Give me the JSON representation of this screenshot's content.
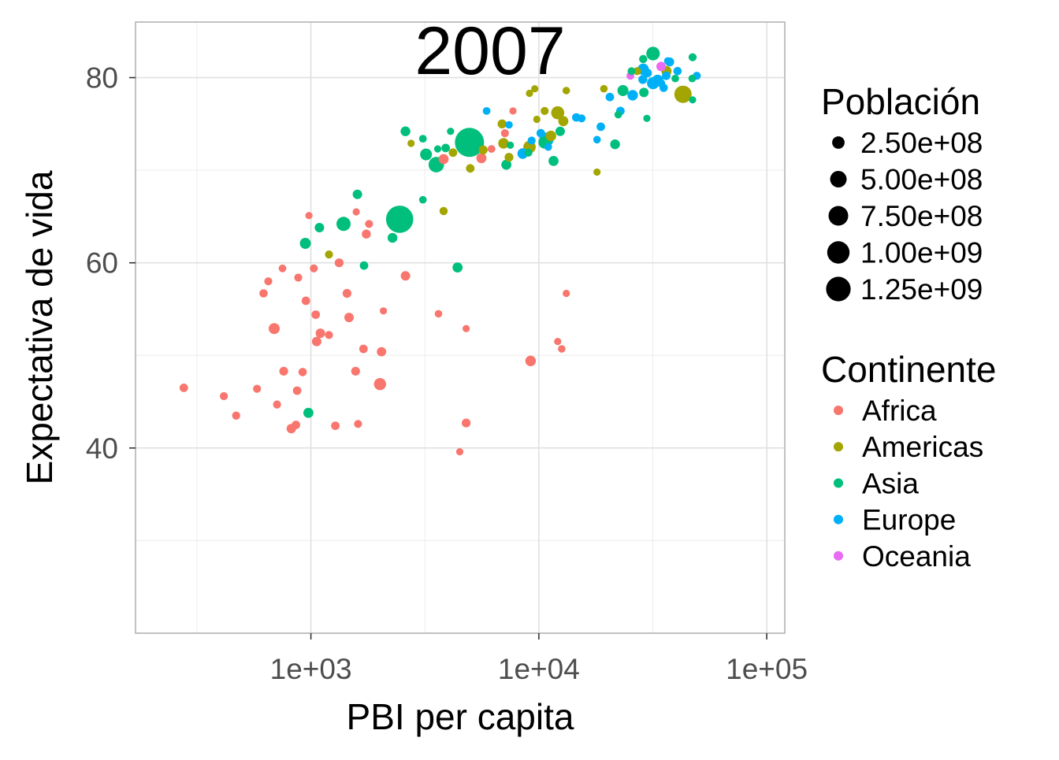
{
  "chart_data": {
    "type": "scatter",
    "title": "2007",
    "xlabel": "PBI per capita",
    "ylabel": "Expectativa de vida",
    "x_scale": "log10",
    "xlim": [
      170,
      120000
    ],
    "ylim": [
      20,
      86
    ],
    "x_ticks": [
      {
        "value": 1000,
        "label": "1e+03"
      },
      {
        "value": 10000,
        "label": "1e+04"
      },
      {
        "value": 100000,
        "label": "1e+05"
      }
    ],
    "y_ticks": [
      {
        "value": 40,
        "label": "40"
      },
      {
        "value": 60,
        "label": "60"
      },
      {
        "value": 80,
        "label": "80"
      }
    ],
    "x_minor": [
      316,
      3162,
      31623
    ],
    "y_minor": [
      30,
      50,
      70
    ],
    "grid": true,
    "legend_placement": "right",
    "size_legend": {
      "title": "Población",
      "entries": [
        {
          "label": "2.50e+08",
          "value": 250000000
        },
        {
          "label": "5.00e+08",
          "value": 500000000
        },
        {
          "label": "7.50e+08",
          "value": 750000000
        },
        {
          "label": "1.00e+09",
          "value": 1000000000
        },
        {
          "label": "1.25e+09",
          "value": 1250000000
        }
      ]
    },
    "color_legend": {
      "title": "Continente",
      "entries": [
        {
          "label": "Africa",
          "color": "#F8766D"
        },
        {
          "label": "Americas",
          "color": "#A3A500"
        },
        {
          "label": "Asia",
          "color": "#00BF7D"
        },
        {
          "label": "Europe",
          "color": "#00B0F6"
        },
        {
          "label": "Oceania",
          "color": "#E76BF3"
        }
      ]
    },
    "series": [
      {
        "name": "Africa",
        "color": "#F8766D",
        "points": [
          [
            277,
            46.5,
            10
          ],
          [
            415,
            45.6,
            5
          ],
          [
            470,
            43.5,
            6
          ],
          [
            580,
            46.4,
            5
          ],
          [
            620,
            56.7,
            8
          ],
          [
            650,
            58.0,
            5
          ],
          [
            690,
            52.9,
            50
          ],
          [
            710,
            44.7,
            5
          ],
          [
            760,
            48.3,
            12
          ],
          [
            750,
            59.4,
            3
          ],
          [
            820,
            42.1,
            20
          ],
          [
            860,
            42.5,
            10
          ],
          [
            870,
            46.2,
            10
          ],
          [
            880,
            58.4,
            5
          ],
          [
            920,
            48.2,
            8
          ],
          [
            950,
            55.9,
            10
          ],
          [
            980,
            65.1,
            1
          ],
          [
            1030,
            59.4,
            5
          ],
          [
            1050,
            54.4,
            10
          ],
          [
            1060,
            51.5,
            20
          ],
          [
            1100,
            52.4,
            20
          ],
          [
            1200,
            52.2,
            5
          ],
          [
            1280,
            42.4,
            10
          ],
          [
            1330,
            60.0,
            12
          ],
          [
            1440,
            56.7,
            12
          ],
          [
            1470,
            54.1,
            20
          ],
          [
            1570,
            48.3,
            12
          ],
          [
            1580,
            65.5,
            1
          ],
          [
            1610,
            42.6,
            5
          ],
          [
            1700,
            50.7,
            10
          ],
          [
            1750,
            63.1,
            15
          ],
          [
            1800,
            64.2,
            5
          ],
          [
            2010,
            46.9,
            80
          ],
          [
            2040,
            50.4,
            18
          ],
          [
            2080,
            54.8,
            1
          ],
          [
            2600,
            58.6,
            20
          ],
          [
            3630,
            54.5,
            2
          ],
          [
            3820,
            71.2,
            30
          ],
          [
            4500,
            39.6,
            1
          ],
          [
            4800,
            42.7,
            12
          ],
          [
            4800,
            52.9,
            1
          ],
          [
            5600,
            71.3,
            30
          ],
          [
            6200,
            72.3,
            3
          ],
          [
            7100,
            74.0,
            5
          ],
          [
            7700,
            76.4,
            1
          ],
          [
            9200,
            49.4,
            40
          ],
          [
            12100,
            51.5,
            1
          ],
          [
            12600,
            50.7,
            2
          ],
          [
            13200,
            56.7,
            1
          ]
        ]
      },
      {
        "name": "Americas",
        "color": "#A3A500",
        "points": [
          [
            1200,
            60.9,
            5
          ],
          [
            2750,
            72.9,
            1
          ],
          [
            3820,
            65.6,
            7
          ],
          [
            4200,
            71.9,
            10
          ],
          [
            5000,
            70.2,
            10
          ],
          [
            5700,
            72.2,
            15
          ],
          [
            6900,
            75.0,
            15
          ],
          [
            7000,
            72.9,
            40
          ],
          [
            7400,
            71.4,
            12
          ],
          [
            9100,
            72.5,
            90
          ],
          [
            9100,
            78.3,
            1
          ],
          [
            9600,
            78.8,
            1
          ],
          [
            9800,
            75.5,
            1
          ],
          [
            10600,
            76.4,
            5
          ],
          [
            11300,
            73.7,
            40
          ],
          [
            12100,
            76.2,
            110
          ],
          [
            12800,
            75.3,
            30
          ],
          [
            13200,
            78.6,
            2
          ],
          [
            18000,
            69.8,
            1
          ],
          [
            19300,
            78.8,
            2
          ],
          [
            27000,
            80.7,
            5
          ],
          [
            36300,
            80.7,
            33
          ],
          [
            42900,
            78.2,
            301
          ]
        ]
      },
      {
        "name": "Asia",
        "color": "#00BF7D",
        "points": [
          [
            975,
            43.8,
            30
          ],
          [
            945,
            62.1,
            50
          ],
          [
            1090,
            63.8,
            20
          ],
          [
            1390,
            64.2,
            150
          ],
          [
            1600,
            67.4,
            20
          ],
          [
            1710,
            59.7,
            10
          ],
          [
            2280,
            62.7,
            25
          ],
          [
            2450,
            64.7,
            1110
          ],
          [
            2600,
            74.2,
            25
          ],
          [
            3100,
            73.4,
            3
          ],
          [
            3100,
            66.8,
            2
          ],
          [
            3200,
            71.7,
            70
          ],
          [
            3550,
            70.6,
            200
          ],
          [
            3600,
            72.3,
            1
          ],
          [
            3900,
            72.4,
            10
          ],
          [
            4100,
            74.2,
            1
          ],
          [
            4400,
            59.5,
            30
          ],
          [
            4960,
            73.0,
            1319
          ],
          [
            7200,
            70.6,
            30
          ],
          [
            7500,
            72.7,
            1
          ],
          [
            9000,
            71.9,
            5
          ],
          [
            10600,
            73.0,
            90
          ],
          [
            11600,
            71.0,
            30
          ],
          [
            12400,
            74.2,
            20
          ],
          [
            21600,
            72.8,
            25
          ],
          [
            22300,
            76.0,
            2
          ],
          [
            23400,
            78.6,
            49
          ],
          [
            25500,
            80.7,
            3
          ],
          [
            28700,
            82.0,
            7
          ],
          [
            28900,
            78.4,
            21
          ],
          [
            29800,
            75.6,
            1
          ],
          [
            31700,
            82.6,
            127
          ],
          [
            39700,
            79.9,
            2
          ],
          [
            47100,
            79.9,
            2
          ],
          [
            47300,
            82.2,
            5
          ],
          [
            47300,
            77.6,
            1
          ]
        ]
      },
      {
        "name": "Europe",
        "color": "#00B0F6",
        "points": [
          [
            5900,
            76.4,
            3
          ],
          [
            7400,
            74.9,
            2
          ],
          [
            8500,
            71.8,
            40
          ],
          [
            9300,
            73.2,
            5
          ],
          [
            10200,
            74.0,
            10
          ],
          [
            10800,
            73.3,
            150
          ],
          [
            11000,
            72.5,
            2
          ],
          [
            14600,
            75.7,
            10
          ],
          [
            15400,
            75.6,
            5
          ],
          [
            18700,
            74.7,
            10
          ],
          [
            18000,
            73.3,
            2
          ],
          [
            20500,
            77.9,
            10
          ],
          [
            22800,
            76.4,
            10
          ],
          [
            25800,
            78.1,
            40
          ],
          [
            28600,
            79.8,
            15
          ],
          [
            28700,
            80.9,
            60
          ],
          [
            30000,
            80.5,
            10
          ],
          [
            31700,
            79.4,
            80
          ],
          [
            33200,
            79.7,
            60
          ],
          [
            34400,
            79.4,
            7
          ],
          [
            35300,
            78.9,
            8
          ],
          [
            36200,
            80.2,
            10
          ],
          [
            36800,
            81.8,
            2
          ],
          [
            37500,
            81.7,
            15
          ],
          [
            40600,
            80.7,
            8
          ],
          [
            49300,
            80.2,
            5
          ]
        ]
      },
      {
        "name": "Oceania",
        "color": "#E76BF3",
        "points": [
          [
            25200,
            80.2,
            4
          ],
          [
            34400,
            81.2,
            20
          ]
        ]
      }
    ]
  }
}
